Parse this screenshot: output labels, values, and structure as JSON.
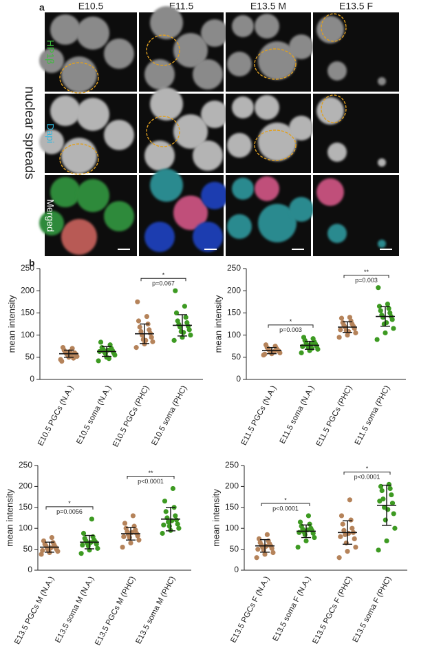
{
  "panel_a": {
    "label": "a",
    "columns": [
      "E10.5",
      "E11.5",
      "E13.5 M",
      "E13.5 F"
    ],
    "side_title": "nuclear spreads",
    "rows": [
      "HP1β",
      "Dapi",
      "Merged"
    ]
  },
  "panel_b_label": "b",
  "chart_data": [
    {
      "type": "strip",
      "ylabel": "mean intensity",
      "ylim": [
        0,
        250
      ],
      "yticks": [
        0,
        50,
        100,
        150,
        200,
        250
      ],
      "categories": [
        "E10.5 PGCs (N.A.)",
        "E10.5 soma (N.A.)",
        "E10.5 PGCs (PHC)",
        "E10.5 soma (PHC)"
      ],
      "groups": [
        {
          "color": "#b5835a",
          "mean": 58,
          "sd": 8,
          "values": [
            45,
            50,
            52,
            55,
            57,
            58,
            60,
            62,
            48,
            66,
            70,
            72,
            54,
            41,
            63
          ]
        },
        {
          "color": "#3d9a22",
          "mean": 63,
          "sd": 11,
          "values": [
            42,
            50,
            55,
            58,
            60,
            62,
            65,
            68,
            70,
            72,
            78,
            84,
            47,
            63,
            66
          ]
        },
        {
          "color": "#b5835a",
          "mean": 103,
          "sd": 22,
          "values": [
            72,
            80,
            85,
            90,
            95,
            100,
            104,
            108,
            112,
            118,
            125,
            132,
            142,
            175,
            88
          ]
        },
        {
          "color": "#3d9a22",
          "mean": 122,
          "sd": 24,
          "values": [
            88,
            95,
            100,
            108,
            112,
            118,
            120,
            124,
            128,
            132,
            140,
            150,
            165,
            200,
            106
          ]
        }
      ],
      "comparisons": [
        {
          "from": 2,
          "to": 3,
          "stars": "*",
          "label": "p=0.067"
        }
      ]
    },
    {
      "type": "strip",
      "ylabel": "mean intensity",
      "ylim": [
        0,
        250
      ],
      "yticks": [
        0,
        50,
        100,
        150,
        200,
        250
      ],
      "categories": [
        "E11.5 PGCs (N.A.)",
        "E11.5 soma (N.A.)",
        "E11.5 PGCs (PHC)",
        "E11.5 soma (PHC)"
      ],
      "groups": [
        {
          "color": "#b5835a",
          "mean": 65,
          "sd": 7,
          "values": [
            55,
            58,
            60,
            62,
            64,
            65,
            66,
            68,
            70,
            72,
            75,
            78,
            63,
            57,
            61
          ]
        },
        {
          "color": "#3d9a22",
          "mean": 77,
          "sd": 9,
          "values": [
            60,
            65,
            68,
            72,
            75,
            77,
            80,
            82,
            85,
            88,
            92,
            95,
            70,
            74,
            79
          ]
        },
        {
          "color": "#b5835a",
          "mean": 118,
          "sd": 12,
          "values": [
            95,
            100,
            105,
            110,
            115,
            118,
            120,
            122,
            125,
            128,
            132,
            138,
            140,
            112,
            108
          ]
        },
        {
          "color": "#3d9a22",
          "mean": 142,
          "sd": 22,
          "values": [
            90,
            105,
            115,
            125,
            135,
            140,
            142,
            145,
            150,
            155,
            160,
            165,
            170,
            207,
            128
          ]
        }
      ],
      "comparisons": [
        {
          "from": 0,
          "to": 1,
          "stars": "*",
          "label": "p=0.003"
        },
        {
          "from": 2,
          "to": 3,
          "stars": "**",
          "label": "p=0.003"
        }
      ]
    },
    {
      "type": "strip",
      "ylabel": "mean intensity",
      "ylim": [
        0,
        250
      ],
      "yticks": [
        0,
        50,
        100,
        150,
        200,
        250
      ],
      "categories": [
        "E13.5 PGCs M (N.A.)",
        "E13.5 soma M (N.A.)",
        "E13.5 PGCs M (PHC)",
        "E13.5 soma M (PHC)"
      ],
      "groups": [
        {
          "color": "#b5835a",
          "mean": 55,
          "sd": 12,
          "values": [
            38,
            42,
            45,
            48,
            50,
            52,
            55,
            58,
            60,
            62,
            66,
            70,
            78,
            47,
            53
          ]
        },
        {
          "color": "#3d9a22",
          "mean": 67,
          "sd": 16,
          "values": [
            40,
            48,
            52,
            58,
            62,
            65,
            68,
            70,
            72,
            76,
            80,
            88,
            122,
            60,
            66
          ]
        },
        {
          "color": "#b5835a",
          "mean": 87,
          "sd": 15,
          "values": [
            55,
            65,
            72,
            78,
            82,
            85,
            88,
            92,
            96,
            100,
            105,
            112,
            130,
            80,
            90
          ]
        },
        {
          "color": "#3d9a22",
          "mean": 122,
          "sd": 28,
          "values": [
            88,
            95,
            100,
            105,
            110,
            115,
            120,
            125,
            130,
            140,
            150,
            165,
            195,
            108,
            118
          ]
        }
      ],
      "comparisons": [
        {
          "from": 0,
          "to": 1,
          "stars": "*",
          "label": "p=0.0056"
        },
        {
          "from": 2,
          "to": 3,
          "stars": "**",
          "label": "p<0.0001"
        }
      ]
    },
    {
      "type": "strip",
      "ylabel": "mean intensity",
      "ylim": [
        0,
        250
      ],
      "yticks": [
        0,
        50,
        100,
        150,
        200,
        250
      ],
      "categories": [
        "E13.5 PGCs F (N.A.)",
        "E13.5 soma F (N.A.)",
        "E13.5 PGCs F (PHC)",
        "E13.5 soma F (PHC)"
      ],
      "groups": [
        {
          "color": "#b5835a",
          "mean": 58,
          "sd": 15,
          "values": [
            30,
            38,
            42,
            48,
            52,
            55,
            58,
            60,
            63,
            66,
            70,
            75,
            85,
            50,
            57
          ]
        },
        {
          "color": "#3d9a22",
          "mean": 93,
          "sd": 15,
          "values": [
            55,
            70,
            78,
            85,
            88,
            92,
            95,
            98,
            100,
            105,
            110,
            115,
            130,
            90,
            96
          ]
        },
        {
          "color": "#b5835a",
          "mean": 90,
          "sd": 28,
          "values": [
            30,
            45,
            55,
            65,
            75,
            85,
            90,
            95,
            100,
            110,
            120,
            130,
            168,
            80,
            88
          ]
        },
        {
          "color": "#3d9a22",
          "mean": 155,
          "sd": 48,
          "values": [
            48,
            70,
            100,
            120,
            135,
            150,
            160,
            170,
            180,
            190,
            195,
            200,
            205,
            165,
            145
          ]
        }
      ],
      "comparisons": [
        {
          "from": 0,
          "to": 1,
          "stars": "*",
          "label": "p<0.0001"
        },
        {
          "from": 2,
          "to": 3,
          "stars": "*",
          "label": "p<0.0001"
        }
      ]
    }
  ]
}
